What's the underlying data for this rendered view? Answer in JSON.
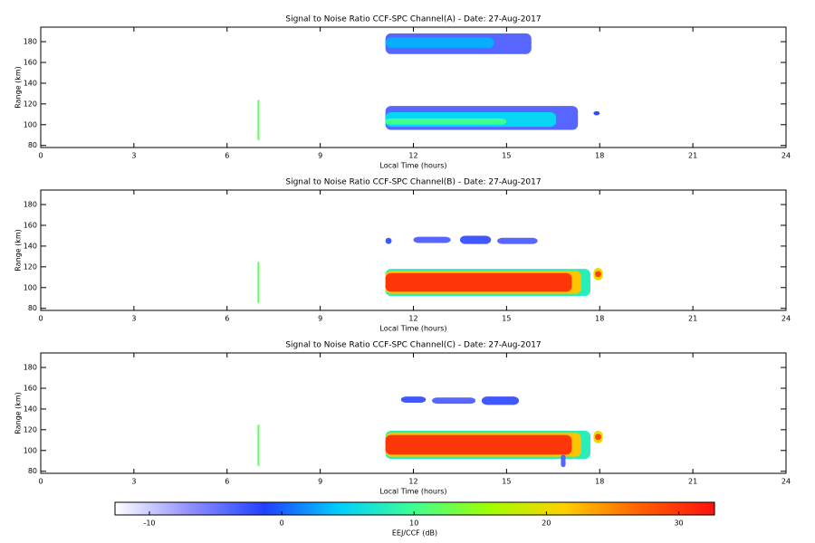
{
  "chart_data": [
    {
      "type": "heatmap",
      "title": "Signal to Noise Ratio CCF-SPC Channel(A) - Date: 27-Aug-2017",
      "xlabel": "Local Time (hours)",
      "ylabel": "Range (km)",
      "xlim": [
        0,
        24
      ],
      "xticks": [
        0,
        3,
        6,
        9,
        12,
        15,
        18,
        21,
        24
      ],
      "ylim": [
        78,
        194
      ],
      "yticks": [
        80,
        100,
        120,
        140,
        160,
        180
      ],
      "cells": [
        {
          "x": [
            11.1,
            15.8
          ],
          "y": [
            168,
            188
          ],
          "value": -4
        },
        {
          "x": [
            11.1,
            14.6
          ],
          "y": [
            174,
            184
          ],
          "value": 3
        },
        {
          "x": [
            11.1,
            17.3
          ],
          "y": [
            95,
            118
          ],
          "value": -4
        },
        {
          "x": [
            11.1,
            16.6
          ],
          "y": [
            98,
            112
          ],
          "value": 5
        },
        {
          "x": [
            11.1,
            15.0
          ],
          "y": [
            100,
            106
          ],
          "value": 10
        },
        {
          "x": [
            6.98,
            7.04
          ],
          "y": [
            85,
            124
          ],
          "value": 12
        },
        {
          "x": [
            17.8,
            18.0
          ],
          "y": [
            109,
            113
          ],
          "value": -2
        }
      ]
    },
    {
      "type": "heatmap",
      "title": "Signal to Noise Ratio CCF-SPC Channel(B) - Date: 27-Aug-2017",
      "xlabel": "Local Time (hours)",
      "ylabel": "Range (km)",
      "xlim": [
        0,
        24
      ],
      "xticks": [
        0,
        3,
        6,
        9,
        12,
        15,
        18,
        21,
        24
      ],
      "ylim": [
        78,
        194
      ],
      "yticks": [
        80,
        100,
        120,
        140,
        160,
        180
      ],
      "cells": [
        {
          "x": [
            11.1,
            17.7
          ],
          "y": [
            92,
            118
          ],
          "value": 8
        },
        {
          "x": [
            11.1,
            17.4
          ],
          "y": [
            94,
            116
          ],
          "value": 22
        },
        {
          "x": [
            11.1,
            17.1
          ],
          "y": [
            96,
            114
          ],
          "value": 30
        },
        {
          "x": [
            17.8,
            18.1
          ],
          "y": [
            107,
            119
          ],
          "value": 20
        },
        {
          "x": [
            17.85,
            18.05
          ],
          "y": [
            110,
            116
          ],
          "value": 29
        },
        {
          "x": [
            11.1,
            11.3
          ],
          "y": [
            142,
            148
          ],
          "value": -3
        },
        {
          "x": [
            12.0,
            13.2
          ],
          "y": [
            143,
            149
          ],
          "value": -4
        },
        {
          "x": [
            13.5,
            14.5
          ],
          "y": [
            142,
            150
          ],
          "value": -3
        },
        {
          "x": [
            14.7,
            16.0
          ],
          "y": [
            142,
            148
          ],
          "value": -4
        },
        {
          "x": [
            6.98,
            7.04
          ],
          "y": [
            85,
            125
          ],
          "value": 12
        }
      ]
    },
    {
      "type": "heatmap",
      "title": "Signal to Noise Ratio CCF-SPC Channel(C) - Date: 27-Aug-2017",
      "xlabel": "Local Time (hours)",
      "ylabel": "Range (km)",
      "xlim": [
        0,
        24
      ],
      "xticks": [
        0,
        3,
        6,
        9,
        12,
        15,
        18,
        21,
        24
      ],
      "ylim": [
        78,
        194
      ],
      "yticks": [
        80,
        100,
        120,
        140,
        160,
        180
      ],
      "cells": [
        {
          "x": [
            11.1,
            17.7
          ],
          "y": [
            92,
            119
          ],
          "value": 8
        },
        {
          "x": [
            11.1,
            17.4
          ],
          "y": [
            94,
            117
          ],
          "value": 22
        },
        {
          "x": [
            11.1,
            17.1
          ],
          "y": [
            96,
            115
          ],
          "value": 30
        },
        {
          "x": [
            16.75,
            16.9
          ],
          "y": [
            84,
            96
          ],
          "value": -4
        },
        {
          "x": [
            17.8,
            18.1
          ],
          "y": [
            107,
            119
          ],
          "value": 20
        },
        {
          "x": [
            17.85,
            18.05
          ],
          "y": [
            110,
            116
          ],
          "value": 29
        },
        {
          "x": [
            11.6,
            12.4
          ],
          "y": [
            146,
            152
          ],
          "value": -3
        },
        {
          "x": [
            12.6,
            14.0
          ],
          "y": [
            145,
            151
          ],
          "value": -4
        },
        {
          "x": [
            14.2,
            15.4
          ],
          "y": [
            144,
            152
          ],
          "value": -3
        },
        {
          "x": [
            6.98,
            7.04
          ],
          "y": [
            85,
            125
          ],
          "value": 12
        }
      ]
    }
  ],
  "colorbar": {
    "label": "EEJ/CCF (dB)",
    "clim": [
      -12.6,
      32.7
    ],
    "ticks": [
      -10,
      0,
      10,
      20,
      30
    ],
    "colormap": [
      "#ffffff",
      "#9090ff",
      "#2040ff",
      "#00d0ff",
      "#40ff90",
      "#a0ff00",
      "#ffd000",
      "#ff6000",
      "#ff1010"
    ]
  }
}
